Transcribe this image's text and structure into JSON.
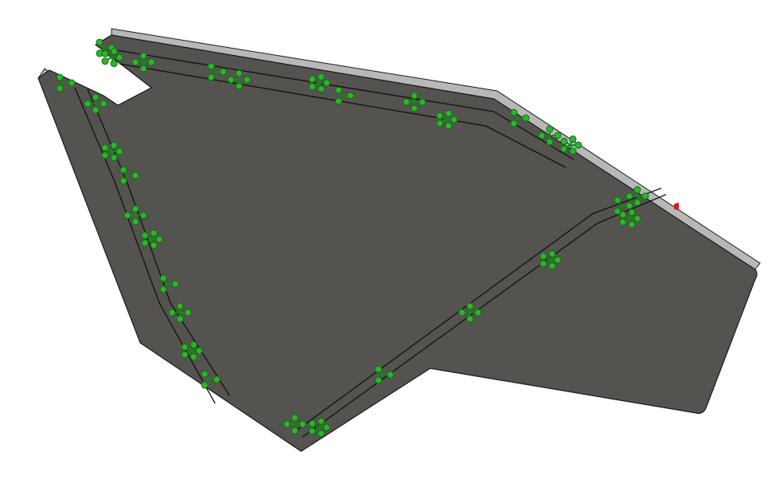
{
  "viewport": {
    "background": "#ffffff"
  },
  "part": {
    "face_color": "#55534f",
    "edge_color": "#1a1a1a",
    "side_face_color": "#b8b8b8"
  },
  "fixtures": {
    "icon": "fixed-geometry-icon",
    "color": "#2db52d"
  },
  "load_marker": {
    "icon": "force-arrow-icon",
    "color": "#d81b1b"
  }
}
